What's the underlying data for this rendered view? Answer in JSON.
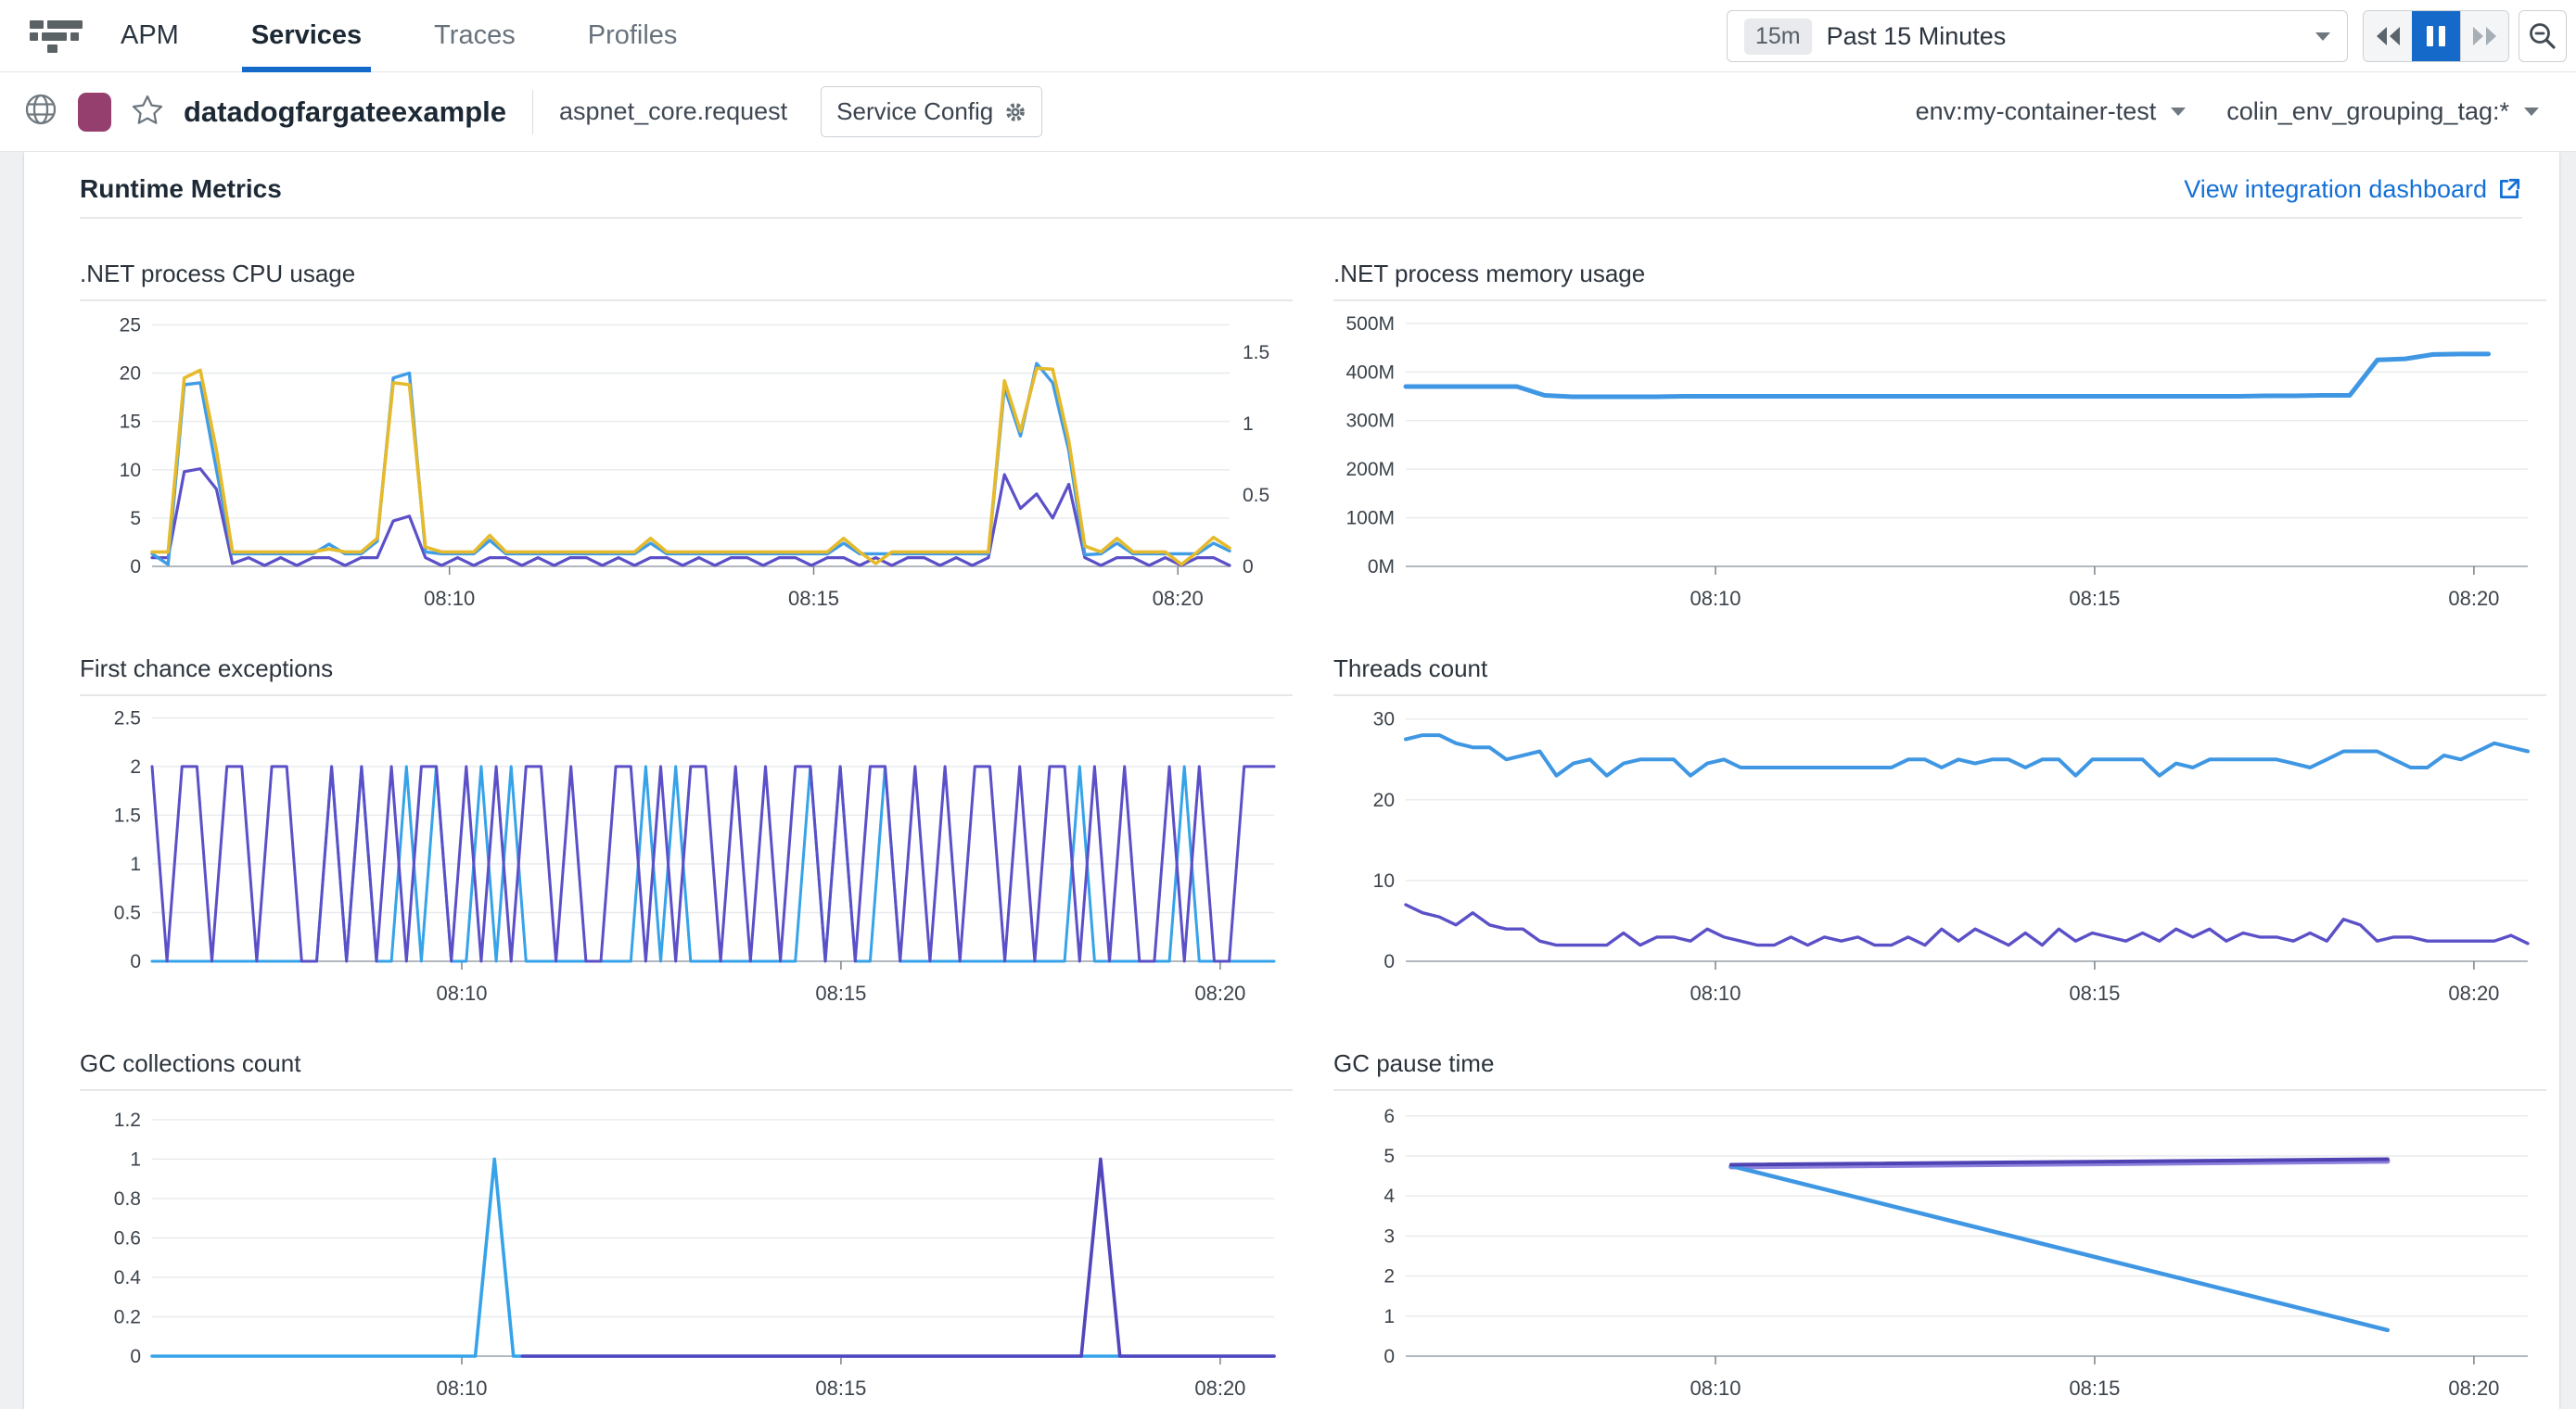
{
  "colors": {
    "accent_blue": "#1569c8",
    "link_blue": "#1470d6",
    "service_color": "#953f6e"
  },
  "nav": {
    "product": "APM",
    "tabs": [
      {
        "label": "Services",
        "active": true
      },
      {
        "label": "Traces",
        "active": false
      },
      {
        "label": "Profiles",
        "active": false
      }
    ],
    "time_range": {
      "badge": "15m",
      "label": "Past 15 Minutes"
    }
  },
  "service_header": {
    "title": "datadogfargateexample",
    "operation": "aspnet_core.request",
    "config_label": "Service Config",
    "env_filter": "env:my-container-test",
    "grouping_filter": "colin_env_grouping_tag:*"
  },
  "section": {
    "title": "Runtime Metrics",
    "link": "View integration dashboard"
  },
  "chart_data": [
    {
      "type": "line",
      "title": ".NET process CPU usage",
      "y_dom": 25.9,
      "y_ticks": [
        {
          "v": 0,
          "label": "0"
        },
        {
          "v": 5,
          "label": "5"
        },
        {
          "v": 10,
          "label": "10"
        },
        {
          "v": 15,
          "label": "15"
        },
        {
          "v": 20,
          "label": "20"
        },
        {
          "v": 25,
          "label": "25"
        }
      ],
      "right_ticks": [
        {
          "f": 0,
          "label": "0"
        },
        {
          "f": 0.285,
          "label": "0.5"
        },
        {
          "f": 0.571,
          "label": "1"
        },
        {
          "f": 0.856,
          "label": "1.5"
        }
      ],
      "x_ticks": [
        {
          "f": 0.276,
          "label": "08:10"
        },
        {
          "f": 0.614,
          "label": "08:15"
        },
        {
          "f": 0.952,
          "label": "08:20"
        }
      ],
      "series": [
        {
          "color": "#5b50c7",
          "w": 3.2,
          "values": [
            0.9,
            0.9,
            9.8,
            10.1,
            8,
            0.3,
            0.9,
            0.1,
            0.9,
            0.1,
            0.9,
            0.9,
            0.1,
            0.9,
            0.9,
            4.7,
            5.2,
            0.9,
            0.1,
            0.9,
            0.1,
            0.9,
            0.9,
            0.1,
            0.9,
            0.1,
            0.9,
            0.9,
            0.1,
            0.9,
            0.1,
            0.9,
            0.9,
            0.1,
            0.9,
            0.1,
            0.9,
            0.9,
            0.1,
            0.9,
            0.9,
            0.1,
            0.9,
            0.9,
            0.1,
            0.9,
            0.1,
            0.9,
            0.9,
            0.1,
            0.9,
            0.1,
            0.9,
            9.5,
            6.0,
            7.5,
            5.0,
            8.5,
            0.9,
            0.1,
            0.9,
            0.9,
            0.1,
            0.9,
            0.1,
            0.9,
            0.9,
            0.1
          ]
        },
        {
          "color": "#3f9ce6",
          "w": 3.4,
          "values": [
            1.3,
            0.2,
            18.8,
            19.0,
            10,
            1.3,
            1.3,
            1.3,
            1.3,
            1.3,
            1.3,
            2.3,
            1.3,
            1.3,
            2.6,
            19.5,
            20.0,
            1.5,
            1.3,
            1.3,
            1.3,
            2.7,
            1.3,
            1.3,
            1.3,
            1.3,
            1.3,
            1.3,
            1.3,
            1.3,
            1.3,
            2.4,
            1.3,
            1.3,
            1.3,
            1.3,
            1.3,
            1.3,
            1.3,
            1.3,
            1.3,
            1.3,
            1.3,
            2.4,
            1.3,
            1.3,
            1.3,
            1.3,
            1.3,
            1.3,
            1.3,
            1.3,
            1.3,
            18.5,
            13.5,
            21.0,
            19.0,
            12,
            1.2,
            1.3,
            2.4,
            1.3,
            1.3,
            1.3,
            1.3,
            1.3,
            2.4,
            1.6
          ]
        },
        {
          "color": "#e5ba2c",
          "w": 3.6,
          "values": [
            1.5,
            1.5,
            19.5,
            20.3,
            12,
            1.5,
            1.5,
            1.5,
            1.5,
            1.5,
            1.5,
            1.8,
            1.5,
            1.5,
            2.9,
            19.0,
            18.8,
            2.0,
            1.5,
            1.5,
            1.5,
            3.2,
            1.5,
            1.5,
            1.5,
            1.5,
            1.5,
            1.5,
            1.5,
            1.5,
            1.5,
            2.9,
            1.5,
            1.5,
            1.5,
            1.5,
            1.5,
            1.5,
            1.5,
            1.5,
            1.5,
            1.5,
            1.5,
            2.9,
            1.5,
            0.3,
            1.5,
            1.5,
            1.5,
            1.5,
            1.5,
            1.5,
            1.5,
            19.2,
            14.0,
            20.5,
            20.4,
            13.0,
            2.1,
            1.5,
            2.9,
            1.5,
            1.5,
            1.5,
            0.2,
            1.5,
            3.0,
            1.9
          ]
        }
      ]
    },
    {
      "type": "line",
      "title": ".NET process memory usage",
      "y_dom": 515,
      "y_ticks": [
        {
          "v": 0,
          "label": "0M"
        },
        {
          "v": 100,
          "label": "100M"
        },
        {
          "v": 200,
          "label": "200M"
        },
        {
          "v": 300,
          "label": "300M"
        },
        {
          "v": 400,
          "label": "400M"
        },
        {
          "v": 500,
          "label": "500M"
        }
      ],
      "x_ticks": [
        {
          "f": 0.276,
          "label": "08:10"
        },
        {
          "f": 0.614,
          "label": "08:15"
        },
        {
          "f": 0.952,
          "label": "08:20"
        }
      ],
      "series": [
        {
          "color": "#3f97e3",
          "w": 5,
          "x1": 0.965,
          "values": [
            370,
            370,
            370,
            370,
            370,
            352,
            349,
            349,
            349,
            349,
            350,
            350,
            350,
            350,
            350,
            350,
            350,
            350,
            350,
            350,
            350,
            350,
            350,
            350,
            350,
            350,
            350,
            350,
            350,
            350,
            350,
            351,
            351,
            352,
            352,
            425,
            427,
            436,
            437,
            437
          ]
        }
      ]
    },
    {
      "type": "line",
      "title": "First chance exceptions",
      "y_dom": 2.57,
      "y_ticks": [
        {
          "v": 0,
          "label": "0"
        },
        {
          "v": 0.5,
          "label": "0.5"
        },
        {
          "v": 1,
          "label": "1"
        },
        {
          "v": 1.5,
          "label": "1.5"
        },
        {
          "v": 2,
          "label": "2"
        },
        {
          "v": 2.5,
          "label": "2.5"
        }
      ],
      "x_ticks": [
        {
          "f": 0.276,
          "label": "08:10"
        },
        {
          "f": 0.614,
          "label": "08:15"
        },
        {
          "f": 0.952,
          "label": "08:20"
        }
      ],
      "series": [
        {
          "color": "#36a3e9",
          "w": 3,
          "values": [
            0,
            0,
            0,
            0,
            0,
            0,
            0,
            0,
            0,
            0,
            0,
            0,
            2,
            0,
            2,
            0,
            0,
            2,
            0,
            2,
            0,
            0,
            2,
            0,
            2,
            0,
            0,
            0,
            0,
            0,
            0,
            0,
            0,
            2,
            0,
            2,
            0,
            0,
            0,
            0,
            0,
            0,
            0,
            0,
            2,
            0,
            2,
            0,
            0,
            2,
            0,
            0,
            0,
            0,
            0,
            0,
            0,
            0,
            0,
            0,
            0,
            0,
            2,
            0,
            0,
            0,
            0,
            0,
            0,
            2,
            0,
            0,
            0,
            0,
            0,
            0
          ]
        },
        {
          "color": "#5b50c7",
          "w": 3,
          "values": [
            2,
            0,
            2,
            2,
            0,
            2,
            2,
            0,
            2,
            2,
            0,
            0,
            2,
            0,
            2,
            0,
            2,
            0,
            2,
            2,
            0,
            2,
            0,
            2,
            0,
            2,
            2,
            0,
            2,
            0,
            0,
            2,
            2,
            0,
            2,
            0,
            2,
            2,
            0,
            2,
            0,
            2,
            0,
            2,
            2,
            0,
            2,
            0,
            2,
            2,
            0,
            2,
            0,
            2,
            0,
            2,
            2,
            0,
            2,
            0,
            2,
            2,
            0,
            2,
            0,
            2,
            0,
            0,
            2,
            0,
            2,
            0,
            0,
            2,
            2,
            2
          ]
        }
      ]
    },
    {
      "type": "line",
      "title": "Threads count",
      "y_dom": 31,
      "y_ticks": [
        {
          "v": 0,
          "label": "0"
        },
        {
          "v": 10,
          "label": "10"
        },
        {
          "v": 20,
          "label": "20"
        },
        {
          "v": 30,
          "label": "30"
        }
      ],
      "x_ticks": [
        {
          "f": 0.276,
          "label": "08:10"
        },
        {
          "f": 0.614,
          "label": "08:15"
        },
        {
          "f": 0.952,
          "label": "08:20"
        }
      ],
      "series": [
        {
          "color": "#3f97e3",
          "w": 4,
          "values": [
            27.5,
            28,
            28,
            27,
            26.5,
            26.5,
            25,
            25.5,
            26,
            23,
            24.5,
            25,
            23,
            24.5,
            25,
            25,
            25,
            23,
            24.5,
            25,
            24,
            24,
            24,
            24,
            24,
            24,
            24,
            24,
            24,
            24,
            25,
            25,
            24,
            25,
            24.5,
            25,
            25,
            24,
            25,
            25,
            23,
            25,
            25,
            25,
            25,
            23,
            24.5,
            24,
            25,
            25,
            25,
            25,
            25,
            24.5,
            24,
            25,
            26,
            26,
            26,
            25,
            24,
            24,
            25.5,
            25,
            26,
            27,
            26.5,
            26
          ]
        },
        {
          "color": "#5b50c7",
          "w": 3.4,
          "values": [
            7,
            6,
            5.5,
            4.5,
            6,
            4.5,
            4,
            4,
            2.5,
            2,
            2,
            2,
            2,
            3.5,
            2,
            3,
            3,
            2.5,
            4,
            3,
            2.5,
            2,
            2,
            3,
            2,
            3,
            2.5,
            3,
            2,
            2,
            3,
            2,
            4,
            2.5,
            4,
            3,
            2,
            3.5,
            2,
            4,
            2.5,
            3.5,
            3,
            2.5,
            3.5,
            2.5,
            4,
            3,
            4,
            2.5,
            3.5,
            3,
            3,
            2.5,
            3.5,
            2.5,
            5.2,
            4.5,
            2.5,
            3,
            3,
            2.5,
            2.5,
            2.5,
            2.5,
            2.5,
            3.2,
            2.2
          ]
        }
      ]
    },
    {
      "type": "line",
      "title": "GC collections count",
      "y_dom": 1.27,
      "y_ticks": [
        {
          "v": 0,
          "label": "0"
        },
        {
          "v": 0.2,
          "label": "0.2"
        },
        {
          "v": 0.4,
          "label": "0.4"
        },
        {
          "v": 0.6,
          "label": "0.6"
        },
        {
          "v": 0.8,
          "label": "0.8"
        },
        {
          "v": 1,
          "label": "1"
        },
        {
          "v": 1.2,
          "label": "1.2"
        }
      ],
      "x_ticks": [
        {
          "f": 0.276,
          "label": "08:10"
        },
        {
          "f": 0.614,
          "label": "08:15"
        },
        {
          "f": 0.952,
          "label": "08:20"
        }
      ],
      "series": [
        {
          "color": "#36a3e9",
          "w": 3.6,
          "values": [
            0,
            0,
            0,
            0,
            0,
            0,
            0,
            0,
            0,
            0,
            0,
            0,
            0,
            0,
            0,
            0,
            0,
            0,
            1,
            0,
            0,
            0,
            0,
            0,
            0,
            0,
            0,
            0,
            0,
            0,
            0,
            0,
            0,
            0,
            0,
            0,
            0,
            0,
            0,
            0,
            0,
            0,
            0,
            0,
            0,
            0,
            0,
            0,
            0,
            0,
            0,
            0,
            0,
            0,
            0,
            0,
            0,
            0,
            0,
            0
          ]
        },
        {
          "color": "#5246bd",
          "w": 3.6,
          "x0": 0.33,
          "values": [
            0,
            0,
            0,
            0,
            0,
            0,
            0,
            0,
            0,
            0,
            0,
            0,
            0,
            0,
            0,
            0,
            0,
            0,
            0,
            0,
            0,
            0,
            0,
            0,
            0,
            0,
            0,
            0,
            0,
            0,
            1,
            0,
            0,
            0,
            0,
            0,
            0,
            0,
            0,
            0
          ]
        }
      ]
    },
    {
      "type": "line",
      "title": "GC pause time",
      "y_dom": 6.25,
      "y_ticks": [
        {
          "v": 0,
          "label": "0"
        },
        {
          "v": 1,
          "label": "1"
        },
        {
          "v": 2,
          "label": "2"
        },
        {
          "v": 3,
          "label": "3"
        },
        {
          "v": 4,
          "label": "4"
        },
        {
          "v": 5,
          "label": "5"
        },
        {
          "v": 6,
          "label": "6"
        }
      ],
      "x_ticks": [
        {
          "f": 0.276,
          "label": "08:10"
        },
        {
          "f": 0.614,
          "label": "08:15"
        },
        {
          "f": 0.952,
          "label": "08:20"
        }
      ],
      "series": [
        {
          "color": "#8d81dd",
          "w": 5.5,
          "points": [
            [
              0.29,
              4.73
            ],
            [
              0.875,
              4.87
            ]
          ]
        },
        {
          "color": "#3f97e3",
          "w": 4.5,
          "points": [
            [
              0.29,
              4.75
            ],
            [
              0.875,
              0.65
            ]
          ]
        },
        {
          "color": "#4f43b3",
          "w": 4.0,
          "points": [
            [
              0.29,
              4.78
            ],
            [
              0.875,
              4.92
            ]
          ]
        }
      ]
    }
  ]
}
